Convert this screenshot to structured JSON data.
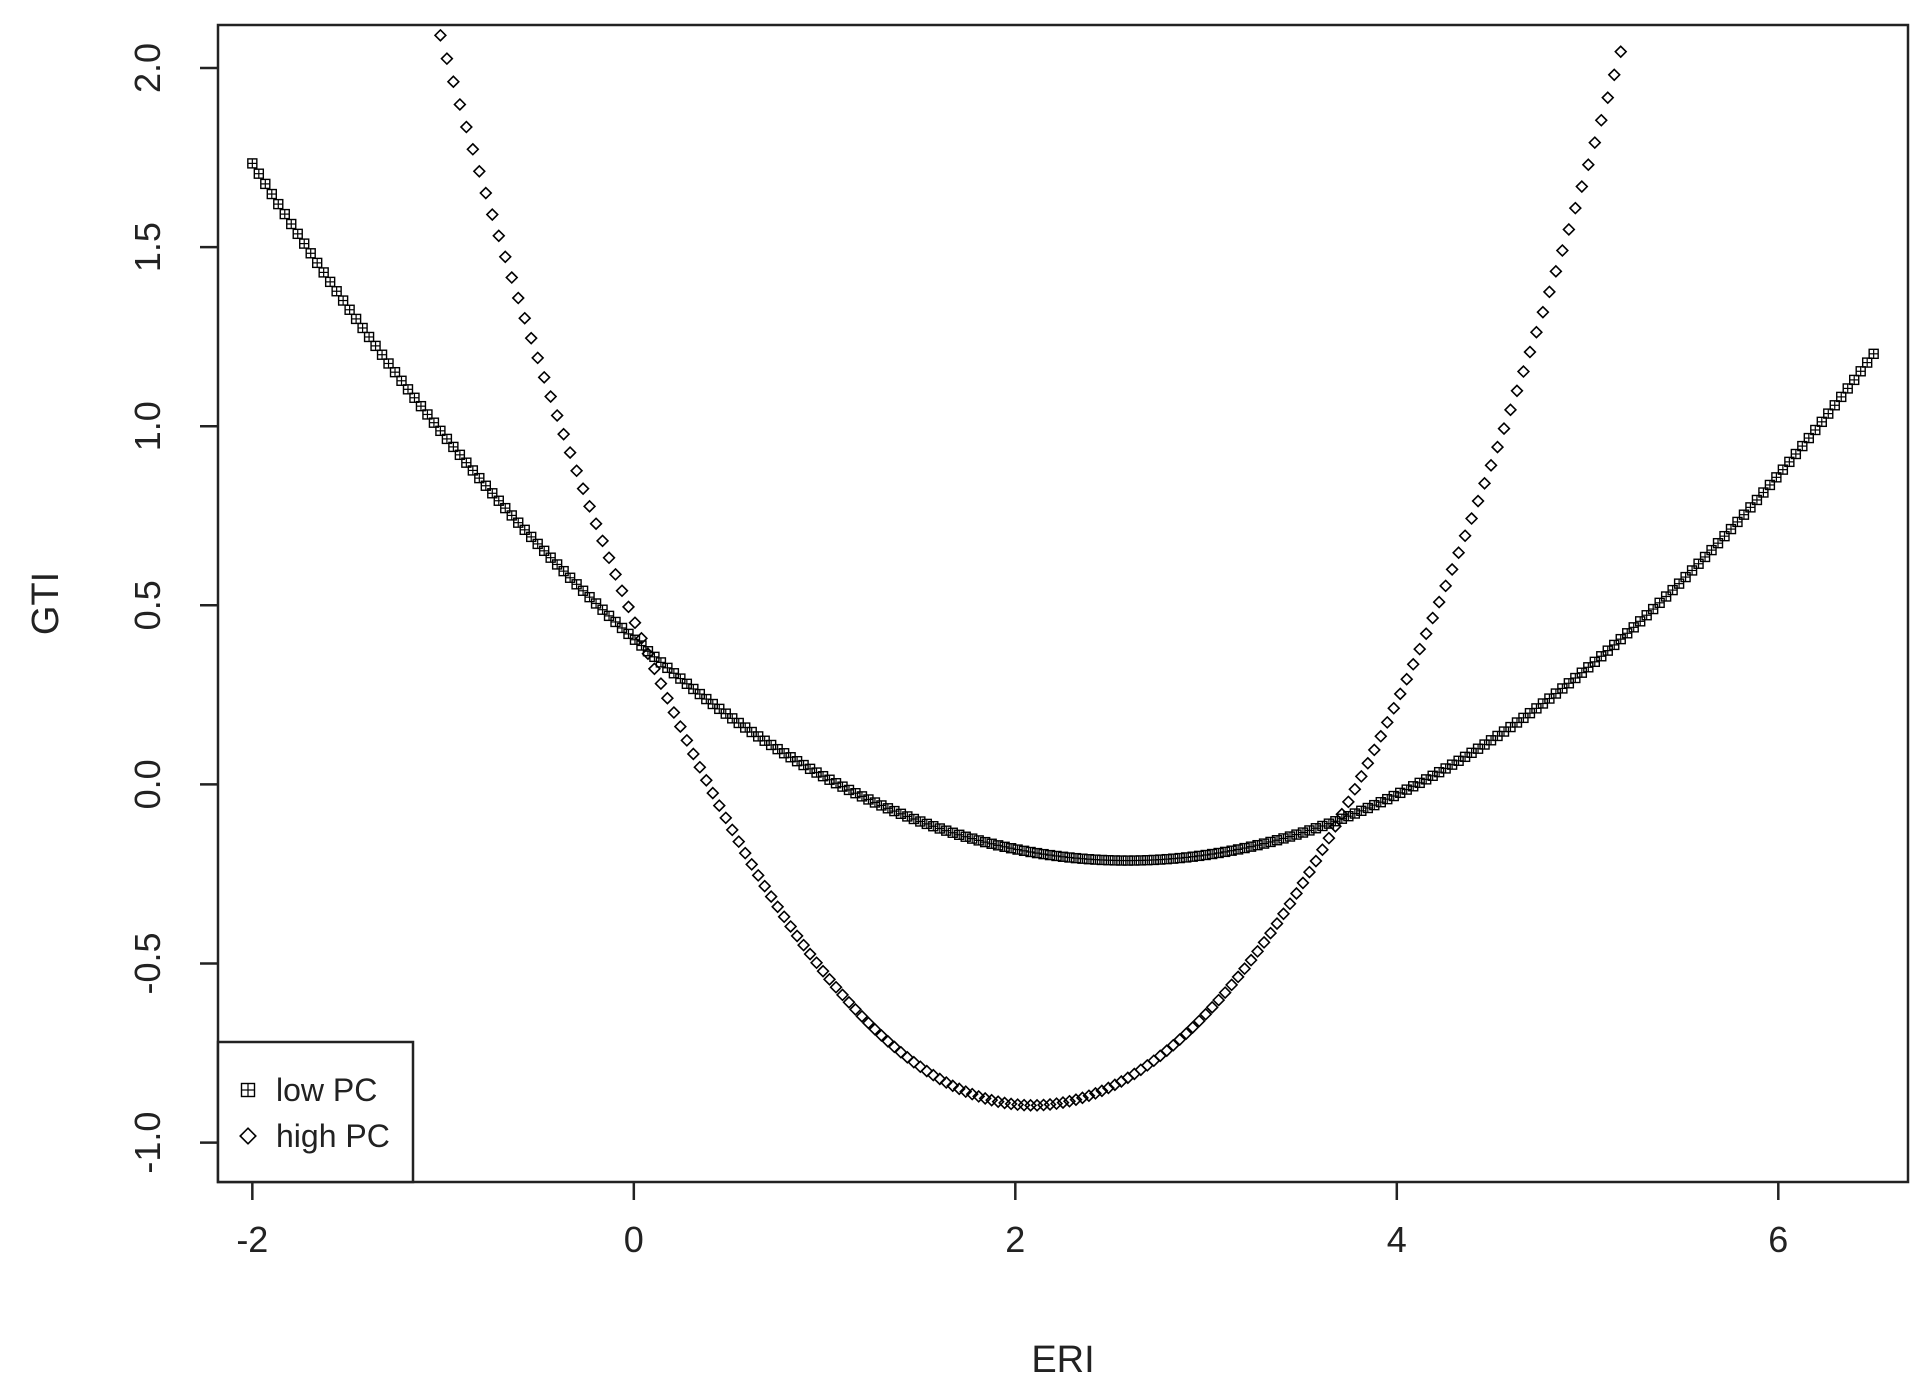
{
  "chart_data": {
    "type": "scatter",
    "title": "",
    "xlabel": "ERI",
    "ylabel": "GTI",
    "xlim": [
      -2.18,
      6.68
    ],
    "ylim": [
      -1.11,
      2.12
    ],
    "x_ticks": [
      "-2",
      "0",
      "2",
      "4",
      "6"
    ],
    "y_ticks": [
      "-1.0",
      "-0.5",
      "0.0",
      "0.5",
      "1.0",
      "1.5",
      "2.0"
    ],
    "grid": false,
    "legend_position": "bottom-left",
    "x_range": [
      -2,
      6.5
    ],
    "series": [
      {
        "name": "low PC",
        "marker": "boxplus",
        "color": "#000000",
        "curve": "quadratic",
        "vertex_x": 2.8,
        "vertex_y": -0.19,
        "points": [
          [
            -2.0,
            1.7
          ],
          [
            0.0,
            0.45
          ],
          [
            2.0,
            -0.14
          ],
          [
            2.8,
            -0.19
          ],
          [
            4.0,
            -0.07
          ],
          [
            5.0,
            0.23
          ],
          [
            6.5,
            1.27
          ]
        ]
      },
      {
        "name": "high PC",
        "marker": "diamond",
        "color": "#000000",
        "curve": "quadratic",
        "vertex_x": 2.1,
        "vertex_y": -0.9,
        "points": [
          [
            -1.0,
            2.1
          ],
          [
            0.0,
            0.37
          ],
          [
            1.0,
            -0.47
          ],
          [
            2.1,
            -0.9
          ],
          [
            3.0,
            -0.61
          ],
          [
            3.7,
            -0.13
          ],
          [
            5.2,
            2.1
          ]
        ]
      }
    ]
  }
}
